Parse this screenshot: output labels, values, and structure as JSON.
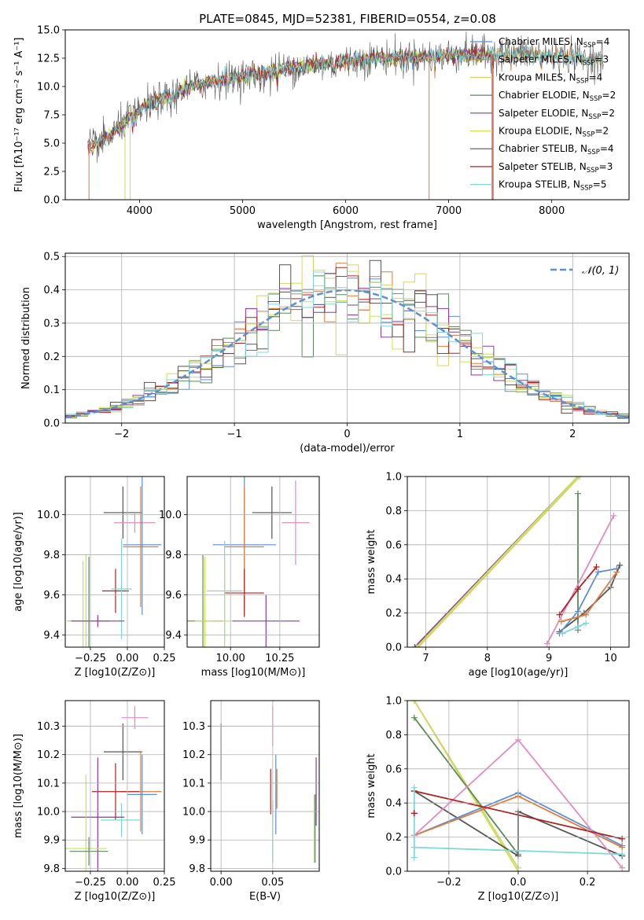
{
  "figure_title": "PLATE=0845, MJD=52381, FIBERID=0554, z=0.08",
  "colors": {
    "chabrier_miles": "#5b8fd6",
    "salpeter_miles": "#e07b39",
    "kroupa_miles": "#d4d46a",
    "chabrier_elodie": "#5a8a5a",
    "salpeter_elodie": "#8a3aa8",
    "kroupa_elodie": "#c8e64a",
    "chabrier_stelib": "#555555",
    "salpeter_stelib": "#b22222",
    "kroupa_stelib": "#7fd8d8",
    "pink": "#e58ac0",
    "normal_curve": "#5b8fd6",
    "grid": "#b0b0b0"
  },
  "chart_data": [
    {
      "id": "spectrum",
      "type": "line",
      "title": "PLATE=0845, MJD=52381, FIBERID=0554, z=0.08",
      "xlabel": "wavelength [Angstrom, rest frame]",
      "ylabel": "Flux [f_λ 10^-17 erg cm^-2 s^-1 A^-1]",
      "xlim": [
        3280,
        8750
      ],
      "ylim": [
        0,
        15
      ],
      "xticks": [
        "4000",
        "5000",
        "6000",
        "7000",
        "8000"
      ],
      "yticks": [
        "0.0",
        "2.5",
        "5.0",
        "7.5",
        "10.0",
        "12.5",
        "15.0"
      ],
      "legend_position": "right",
      "legend": [
        {
          "label": "Chabrier MILES, N",
          "sub": "SSP",
          "tail": "=4",
          "color": "#5b8fd6"
        },
        {
          "label": "Salpeter MILES, N",
          "sub": "SSP",
          "tail": "=3",
          "color": "#e07b39"
        },
        {
          "label": "Kroupa MILES, N",
          "sub": "SSP",
          "tail": "=4",
          "color": "#d4d46a"
        },
        {
          "label": "Chabrier ELODIE, N",
          "sub": "SSP",
          "tail": "=2",
          "color": "#5a8a5a"
        },
        {
          "label": "Salpeter ELODIE, N",
          "sub": "SSP",
          "tail": "=2",
          "color": "#8a3aa8"
        },
        {
          "label": "Kroupa ELODIE, N",
          "sub": "SSP",
          "tail": "=2",
          "color": "#c8e64a"
        },
        {
          "label": "Chabrier STELIB, N",
          "sub": "SSP",
          "tail": "=4",
          "color": "#555555"
        },
        {
          "label": "Salpeter STELIB, N",
          "sub": "SSP",
          "tail": "=3",
          "color": "#b22222"
        },
        {
          "label": "Kroupa STELIB, N",
          "sub": "SSP",
          "tail": "=5",
          "color": "#7fd8d8"
        }
      ],
      "continuum": [
        [
          3500,
          4.6
        ],
        [
          3700,
          5.5
        ],
        [
          3900,
          7.3
        ],
        [
          4100,
          8.5
        ],
        [
          4300,
          9.3
        ],
        [
          4500,
          10.0
        ],
        [
          4700,
          10.4
        ],
        [
          4900,
          10.8
        ],
        [
          5100,
          11.0
        ],
        [
          5300,
          11.4
        ],
        [
          5500,
          11.7
        ],
        [
          5700,
          11.9
        ],
        [
          5900,
          12.1
        ],
        [
          6100,
          12.3
        ],
        [
          6300,
          12.5
        ],
        [
          6500,
          12.6
        ],
        [
          6700,
          12.6
        ],
        [
          6900,
          12.7
        ],
        [
          7100,
          12.8
        ],
        [
          7300,
          12.8
        ],
        [
          7450,
          12.9
        ],
        [
          7700,
          12.9
        ],
        [
          8000,
          12.7
        ],
        [
          8300,
          12.5
        ],
        [
          8500,
          12.3
        ]
      ]
    },
    {
      "id": "residuals",
      "type": "histogram",
      "xlabel": "(data-model)/error",
      "ylabel": "Normed distribution",
      "xlim": [
        -2.5,
        2.5
      ],
      "ylim": [
        0,
        0.51
      ],
      "xticks": [
        "−2",
        "−1",
        "0",
        "1",
        "2"
      ],
      "yticks": [
        "0.0",
        "0.1",
        "0.2",
        "0.3",
        "0.4",
        "0.5"
      ],
      "bin_width": 0.1,
      "legend": [
        {
          "label": "𝒩(0, 1)",
          "color": "#5b8fd6",
          "style": "dashed"
        }
      ],
      "reference": "normal(0,1)"
    },
    {
      "id": "age_vs_Z",
      "type": "errorbar",
      "xlabel": "Z [log10(Z/Z⊙)]",
      "ylabel": "age [log10(age/yr)]",
      "xlim": [
        -0.42,
        0.25
      ],
      "ylim": [
        9.34,
        10.19
      ],
      "xticks": [
        "−0.25",
        "0.00",
        "0.25"
      ],
      "yticks": [
        "9.4",
        "9.6",
        "9.8",
        "10.0"
      ],
      "points": [
        {
          "x": -0.03,
          "y": 10.01,
          "xerr": 0.13,
          "yerr": 0.13,
          "color": "#555555"
        },
        {
          "x": 0.05,
          "y": 9.96,
          "xerr": 0.14,
          "yerr": 0.05,
          "color": "#e58ac0"
        },
        {
          "x": 0.1,
          "y": 9.85,
          "xerr": 0.13,
          "yerr": 0.35,
          "color": "#5b8fd6"
        },
        {
          "x": 0.09,
          "y": 9.84,
          "xerr": 0.12,
          "yerr": 0.3,
          "color": "#e07b39"
        },
        {
          "x": -0.08,
          "y": 9.62,
          "xerr": 0.09,
          "yerr": 0.11,
          "color": "#b22222"
        },
        {
          "x": -0.04,
          "y": 9.63,
          "xerr": 0.07,
          "yerr": 0.25,
          "color": "#7fd8d8"
        },
        {
          "x": -0.26,
          "y": 9.47,
          "xerr": 0.14,
          "yerr": 0.32,
          "color": "#5a8a5a"
        },
        {
          "x": -0.28,
          "y": 9.47,
          "xerr": 0.08,
          "yerr": 0.33,
          "color": "#c8e64a"
        },
        {
          "x": -0.3,
          "y": 9.47,
          "xerr": 0.11,
          "yerr": 0.3,
          "color": "#d4d46a"
        },
        {
          "x": -0.2,
          "y": 9.47,
          "xerr": 0.18,
          "yerr": 0.03,
          "color": "#8a3aa8"
        }
      ]
    },
    {
      "id": "age_vs_mass",
      "type": "errorbar",
      "xlabel": "mass [log10(M/M⊙)]",
      "ylabel": "",
      "xlim": [
        9.78,
        10.45
      ],
      "ylim": [
        9.34,
        10.19
      ],
      "xticks": [
        "10.00",
        "10.25"
      ],
      "yticks": [
        "9.4",
        "9.6",
        "9.8",
        "10.0"
      ],
      "points": [
        {
          "x": 10.21,
          "y": 10.01,
          "xerr": 0.1,
          "yerr": 0.13,
          "color": "#555555"
        },
        {
          "x": 10.33,
          "y": 9.96,
          "xerr": 0.07,
          "yerr": 0.21,
          "color": "#e58ac0"
        },
        {
          "x": 10.07,
          "y": 9.85,
          "xerr": 0.16,
          "yerr": 0.35,
          "color": "#5b8fd6"
        },
        {
          "x": 10.07,
          "y": 9.84,
          "xerr": 0.1,
          "yerr": 0.3,
          "color": "#e07b39"
        },
        {
          "x": 10.07,
          "y": 9.61,
          "xerr": 0.1,
          "yerr": 0.12,
          "color": "#b22222"
        },
        {
          "x": 9.97,
          "y": 9.62,
          "xerr": 0.09,
          "yerr": 0.25,
          "color": "#7fd8d8"
        },
        {
          "x": 9.86,
          "y": 9.47,
          "xerr": 0.1,
          "yerr": 0.33,
          "color": "#5a8a5a"
        },
        {
          "x": 9.87,
          "y": 9.47,
          "xerr": 0.05,
          "yerr": 0.32,
          "color": "#c8e64a"
        },
        {
          "x": 9.97,
          "y": 9.47,
          "xerr": 0.05,
          "yerr": 0.3,
          "color": "#d4d46a"
        },
        {
          "x": 10.18,
          "y": 9.47,
          "xerr": 0.17,
          "yerr": 0.13,
          "color": "#8a3aa8"
        }
      ]
    },
    {
      "id": "weight_vs_age",
      "type": "line",
      "xlabel": "age [log10(age/yr)]",
      "ylabel": "mass weight",
      "xlim": [
        6.7,
        10.3
      ],
      "ylim": [
        0,
        1
      ],
      "xticks": [
        "7",
        "8",
        "9",
        "10"
      ],
      "yticks": [
        "0.0",
        "0.2",
        "0.4",
        "0.6",
        "0.8",
        "1.0"
      ],
      "series": [
        {
          "color": "#8a3aa8",
          "points": [
            [
              6.82,
              0.0
            ],
            [
              9.47,
              1.0
            ]
          ]
        },
        {
          "color": "#c8e64a",
          "points": [
            [
              6.85,
              0.0
            ],
            [
              9.47,
              1.0
            ]
          ]
        },
        {
          "color": "#d4d46a",
          "points": [
            [
              6.88,
              0.0
            ],
            [
              9.5,
              1.0
            ]
          ]
        },
        {
          "color": "#5a8a5a",
          "points": [
            [
              9.47,
              0.1
            ],
            [
              9.47,
              0.9
            ]
          ]
        },
        {
          "color": "#e58ac0",
          "points": [
            [
              8.97,
              0.02
            ],
            [
              10.05,
              0.77
            ]
          ]
        },
        {
          "color": "#b22222",
          "points": [
            [
              9.17,
              0.19
            ],
            [
              9.47,
              0.34
            ],
            [
              9.77,
              0.47
            ]
          ]
        },
        {
          "color": "#555555",
          "points": [
            [
              9.17,
              0.09
            ],
            [
              9.57,
              0.2
            ],
            [
              10.0,
              0.35
            ],
            [
              10.15,
              0.48
            ]
          ]
        },
        {
          "color": "#5b8fd6",
          "points": [
            [
              9.17,
              0.08
            ],
            [
              9.47,
              0.21
            ],
            [
              9.8,
              0.44
            ],
            [
              10.1,
              0.46
            ]
          ]
        },
        {
          "color": "#e07b39",
          "points": [
            [
              9.2,
              0.15
            ],
            [
              9.6,
              0.19
            ],
            [
              10.1,
              0.44
            ]
          ]
        },
        {
          "color": "#7fd8d8",
          "points": [
            [
              9.22,
              0.08
            ],
            [
              9.47,
              0.12
            ],
            [
              9.6,
              0.14
            ]
          ]
        }
      ]
    },
    {
      "id": "mass_vs_Z",
      "type": "errorbar",
      "xlabel": "Z [log10(Z/Z⊙)]",
      "ylabel": "mass [log10(M/M⊙)]",
      "xlim": [
        -0.42,
        0.25
      ],
      "ylim": [
        9.79,
        10.39
      ],
      "xticks": [
        "−0.25",
        "0.00",
        "0.25"
      ],
      "yticks": [
        "9.8",
        "9.9",
        "10.0",
        "10.1",
        "10.2",
        "10.3"
      ],
      "points": [
        {
          "x": 0.05,
          "y": 10.33,
          "xerr": 0.09,
          "yerr": 0.04,
          "color": "#e58ac0"
        },
        {
          "x": -0.03,
          "y": 10.21,
          "xerr": 0.13,
          "yerr": 0.1,
          "color": "#555555"
        },
        {
          "x": 0.09,
          "y": 10.07,
          "xerr": 0.14,
          "yerr": 0.14,
          "color": "#e07b39"
        },
        {
          "x": 0.1,
          "y": 10.06,
          "xerr": 0.1,
          "yerr": 0.14,
          "color": "#5b8fd6"
        },
        {
          "x": -0.08,
          "y": 10.07,
          "xerr": 0.16,
          "yerr": 0.1,
          "color": "#b22222"
        },
        {
          "x": -0.04,
          "y": 9.97,
          "xerr": 0.14,
          "yerr": 0.06,
          "color": "#7fd8d8"
        },
        {
          "x": -0.2,
          "y": 9.98,
          "xerr": 0.18,
          "yerr": 0.21,
          "color": "#8a3aa8"
        },
        {
          "x": -0.28,
          "y": 9.87,
          "xerr": 0.14,
          "yerr": 0.26,
          "color": "#c8e64a"
        },
        {
          "x": -0.26,
          "y": 9.86,
          "xerr": 0.13,
          "yerr": 0.05,
          "color": "#5a8a5a"
        }
      ]
    },
    {
      "id": "mass_vs_EBV",
      "type": "errorbar",
      "xlabel": "E(B-V)",
      "ylabel": "",
      "xlim": [
        -0.01,
        0.095
      ],
      "ylim": [
        9.79,
        10.39
      ],
      "xticks": [
        "0.00",
        "0.05"
      ],
      "yticks": [
        "9.8",
        "9.9",
        "10.0",
        "10.1",
        "10.2",
        "10.3"
      ],
      "points": [
        {
          "x": 0.0,
          "y": 10.21,
          "xerr": 0,
          "yerr": 0.1,
          "color": "#555555"
        },
        {
          "x": 0.05,
          "y": 10.3,
          "xerr": 0,
          "yerr": 0.07,
          "color": "#e58ac0"
        },
        {
          "x": 0.053,
          "y": 10.06,
          "xerr": 0,
          "yerr": 0.14,
          "color": "#5b8fd6"
        },
        {
          "x": 0.054,
          "y": 10.08,
          "xerr": 0,
          "yerr": 0.07,
          "color": "#e07b39"
        },
        {
          "x": 0.048,
          "y": 10.07,
          "xerr": 0,
          "yerr": 0.08,
          "color": "#b22222"
        },
        {
          "x": 0.05,
          "y": 9.93,
          "xerr": 0,
          "yerr": 0.11,
          "color": "#7fd8d8"
        },
        {
          "x": 0.092,
          "y": 10.07,
          "xerr": 0,
          "yerr": 0.12,
          "color": "#8a3aa8"
        },
        {
          "x": 0.09,
          "y": 9.94,
          "xerr": 0,
          "yerr": 0.12,
          "color": "#c8e64a"
        },
        {
          "x": 0.091,
          "y": 9.94,
          "xerr": 0,
          "yerr": 0.12,
          "color": "#5a8a5a"
        }
      ]
    },
    {
      "id": "weight_vs_Z",
      "type": "line",
      "xlabel": "Z [log10(Z/Z⊙)]",
      "ylabel": "mass weight",
      "xlim": [
        -0.32,
        0.32
      ],
      "ylim": [
        0,
        1
      ],
      "xticks": [
        "−0.2",
        "0.0",
        "0.2"
      ],
      "yticks": [
        "0.0",
        "0.2",
        "0.4",
        "0.6",
        "0.8",
        "1.0"
      ],
      "series": [
        {
          "color": "#c8e64a",
          "points": [
            [
              -0.3,
              1.0
            ],
            [
              0.0,
              0.0
            ]
          ]
        },
        {
          "color": "#d4d46a",
          "points": [
            [
              -0.3,
              1.0
            ],
            [
              0.0,
              0.02
            ]
          ]
        },
        {
          "color": "#5a8a5a",
          "points": [
            [
              -0.3,
              0.9
            ],
            [
              0.0,
              0.1
            ]
          ]
        },
        {
          "color": "#555555",
          "points": [
            [
              -0.3,
              0.47
            ],
            [
              0.0,
              0.09
            ],
            [
              0.0,
              0.35
            ],
            [
              0.3,
              0.09
            ]
          ]
        },
        {
          "color": "#5b8fd6",
          "points": [
            [
              -0.3,
              0.21
            ],
            [
              0.0,
              0.46
            ],
            [
              0.3,
              0.15
            ]
          ]
        },
        {
          "color": "#e07b39",
          "points": [
            [
              -0.3,
              0.21
            ],
            [
              0.0,
              0.44
            ],
            [
              0.3,
              0.14
            ]
          ]
        },
        {
          "color": "#e58ac0",
          "points": [
            [
              -0.3,
              0.21
            ],
            [
              0.0,
              0.77
            ],
            [
              0.3,
              0.02
            ]
          ]
        },
        {
          "color": "#b22222",
          "points": [
            [
              -0.3,
              0.47
            ],
            [
              0.3,
              0.19
            ]
          ]
        },
        {
          "color": "#7fd8d8",
          "points": [
            [
              -0.3,
              0.14
            ],
            [
              0.3,
              0.1
            ]
          ]
        },
        {
          "color": "#7fd8d8",
          "points": [
            [
              -0.3,
              0.49
            ],
            [
              -0.3,
              0.08
            ]
          ]
        },
        {
          "color": "#b22222",
          "points": [
            [
              -0.3,
              0.34
            ],
            [
              -0.3,
              0.34
            ]
          ]
        }
      ]
    }
  ]
}
